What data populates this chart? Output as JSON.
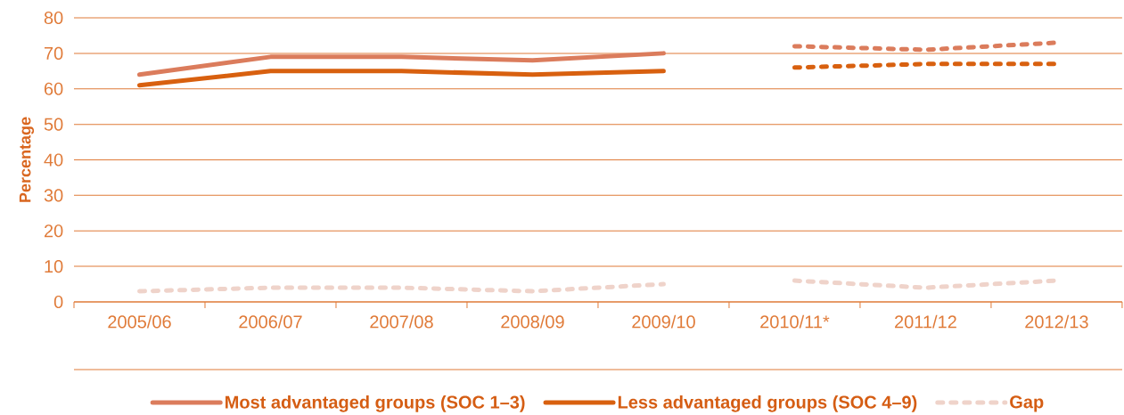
{
  "chart_data": {
    "type": "line",
    "ylabel": "Percentage",
    "categories": [
      "2005/06",
      "2006/07",
      "2007/08",
      "2008/09",
      "2009/10",
      "2010/11*",
      "2011/12",
      "2012/13"
    ],
    "ylim": [
      0,
      80
    ],
    "yticks": [
      0,
      10,
      20,
      30,
      40,
      50,
      60,
      70,
      80
    ],
    "grid": "y",
    "legend": "bottom",
    "series": [
      {
        "name": "Most advantaged groups (SOC 1–3)",
        "color": "#db7c5c",
        "line_style": "solid",
        "values": [
          64,
          69,
          69,
          68,
          70,
          null,
          null,
          null
        ]
      },
      {
        "name": "Less advantaged groups (SOC 4–9)",
        "color": "#d8600f",
        "line_style": "solid",
        "values": [
          61,
          65,
          65,
          64,
          65,
          null,
          null,
          null
        ]
      },
      {
        "name": "Gap",
        "color": "#efd3ca",
        "line_style": "dashed",
        "values": [
          3,
          4,
          4,
          3,
          5,
          null,
          null,
          null
        ]
      },
      {
        "color": "#db7c5c",
        "line_style": "dashed",
        "values": [
          null,
          null,
          null,
          null,
          null,
          72,
          71,
          73
        ]
      },
      {
        "color": "#d8600f",
        "line_style": "dashed",
        "values": [
          null,
          null,
          null,
          null,
          null,
          66,
          67,
          67
        ]
      },
      {
        "color": "#efd3ca",
        "line_style": "dashed",
        "values": [
          null,
          null,
          null,
          null,
          null,
          6,
          4,
          6
        ]
      }
    ]
  }
}
